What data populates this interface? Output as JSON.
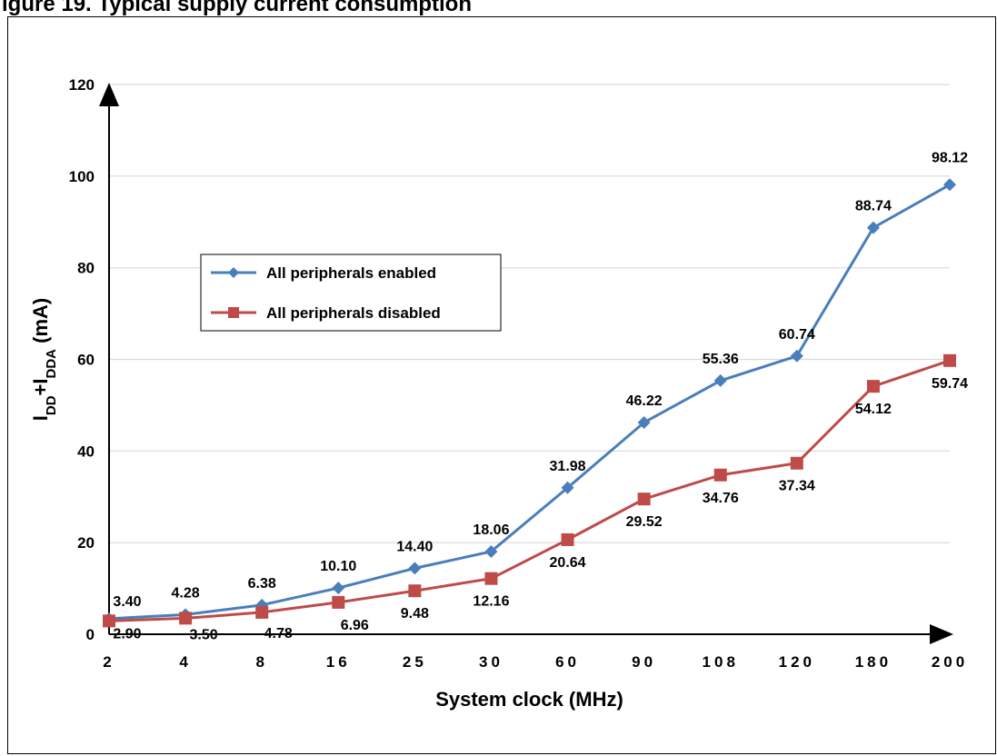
{
  "page": {
    "title": "igure 19. Typical supply current consumption"
  },
  "chart_data": {
    "type": "line",
    "title": "",
    "xlabel": "System clock (MHz)",
    "ylabel_main": "I",
    "ylabel_sub1": "DD",
    "ylabel_plus": "+I",
    "ylabel_sub2": "DDA",
    "ylabel_unit": " (mA)",
    "categories": [
      "2",
      "4",
      "8",
      "16",
      "25",
      "30",
      "60",
      "90",
      "108",
      "120",
      "180",
      "200"
    ],
    "ylim": [
      0,
      120
    ],
    "yticks": [
      0,
      20,
      40,
      60,
      80,
      100,
      120
    ],
    "grid": true,
    "legend_position": "center-left",
    "series": [
      {
        "name": "All peripherals enabled",
        "color": "#4A7EBB",
        "marker": "diamond",
        "values": [
          3.4,
          4.28,
          6.38,
          10.1,
          14.4,
          18.06,
          31.98,
          46.22,
          55.36,
          60.74,
          88.74,
          98.12
        ],
        "labels": [
          "3.40",
          "4.28",
          "6.38",
          "10.10",
          "14.40",
          "18.06",
          "31.98",
          "46.22",
          "55.36",
          "60.74",
          "88.74",
          "98.12"
        ]
      },
      {
        "name": "All peripherals disabled",
        "color": "#BE4B48",
        "marker": "square",
        "values": [
          2.9,
          3.5,
          4.78,
          6.96,
          9.48,
          12.16,
          20.64,
          29.52,
          34.76,
          37.34,
          54.12,
          59.74
        ],
        "labels": [
          "2.90",
          "3.50",
          "4.78",
          "6.96",
          "9.48",
          "12.16",
          "20.64",
          "29.52",
          "34.76",
          "37.34",
          "54.12",
          "59.74"
        ]
      }
    ]
  }
}
